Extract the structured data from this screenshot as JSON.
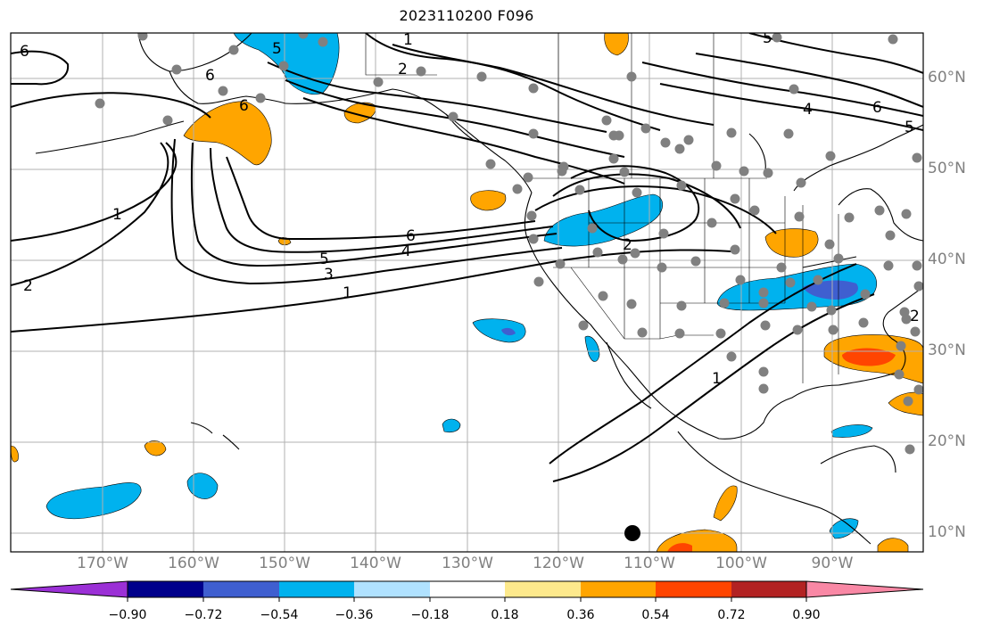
{
  "title": "2023110200 F096",
  "lat_labels": [
    "60°N",
    "50°N",
    "40°N",
    "30°N",
    "20°N",
    "10°N"
  ],
  "lon_labels": [
    "170°W",
    "160°W",
    "150°W",
    "140°W",
    "130°W",
    "120°W",
    "110°W",
    "100°W",
    "90°W"
  ],
  "contour_labels": [
    "6",
    "6",
    "6",
    "5",
    "1",
    "2",
    "2",
    "1",
    "6",
    "4",
    "5",
    "5",
    "4",
    "3",
    "6",
    "5",
    "1",
    "2",
    "1",
    "2"
  ],
  "colorbar": {
    "ticks": [
      "−0.90",
      "−0.72",
      "−0.54",
      "−0.36",
      "−0.18",
      "0.18",
      "0.36",
      "0.54",
      "0.72",
      "0.90"
    ],
    "colors": [
      "#9b30d6",
      "#00008b",
      "#3f5fd0",
      "#00b2ee",
      "#b0e2ff",
      "#ffffff",
      "#fde98c",
      "#ffa500",
      "#ff4500",
      "#b22222",
      "#f988a5"
    ]
  },
  "colors": {
    "neg_light": "#b0e2ff",
    "neg_mid": "#00b2ee",
    "neg_strong": "#3f5fd0",
    "pos_light": "#fde98c",
    "pos_mid": "#ffa500",
    "pos_strong": "#ff4500",
    "grid": "#b0b0b0",
    "station": "#808080"
  }
}
